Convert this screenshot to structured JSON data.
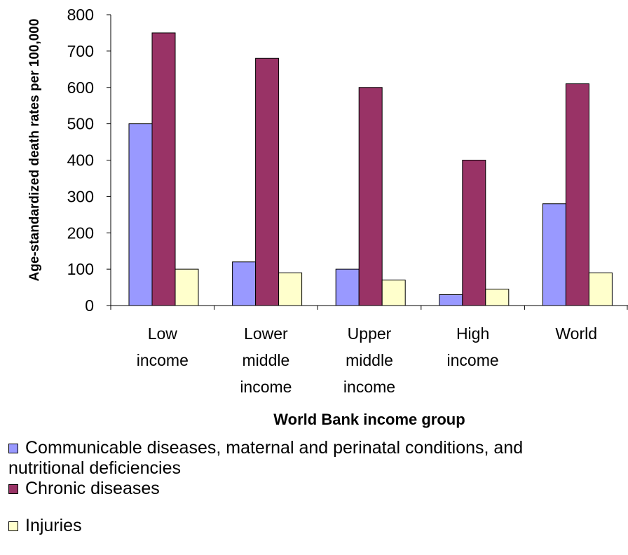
{
  "chart_data": {
    "type": "bar",
    "categories": [
      [
        "Low",
        "income"
      ],
      [
        "Lower",
        "middle",
        "income"
      ],
      [
        "Upper",
        "middle",
        "income"
      ],
      [
        "High",
        "income"
      ],
      [
        "World"
      ]
    ],
    "series": [
      {
        "name": "Communicable diseases, maternal and perinatal conditions, and nutritional deficiencies",
        "name_lines": [
          "Communicable diseases, maternal and perinatal conditions, and",
          "nutritional deficiencies"
        ],
        "color": "#9999ff",
        "values": [
          500,
          120,
          100,
          30,
          280
        ]
      },
      {
        "name": "Chronic diseases",
        "name_lines": [
          "Chronic diseases"
        ],
        "color": "#993366",
        "values": [
          750,
          680,
          600,
          400,
          610
        ]
      },
      {
        "name": "Injuries",
        "name_lines": [
          "Injuries"
        ],
        "color": "#ffffcc",
        "values": [
          100,
          90,
          70,
          45,
          90
        ]
      }
    ],
    "xlabel": "World Bank income group",
    "ylabel": "Age-standardized death rates per 100,000",
    "ylim": [
      0,
      800
    ],
    "yticks": [
      0,
      100,
      200,
      300,
      400,
      500,
      600,
      700,
      800
    ],
    "grid": false,
    "legend_position": "bottom"
  }
}
